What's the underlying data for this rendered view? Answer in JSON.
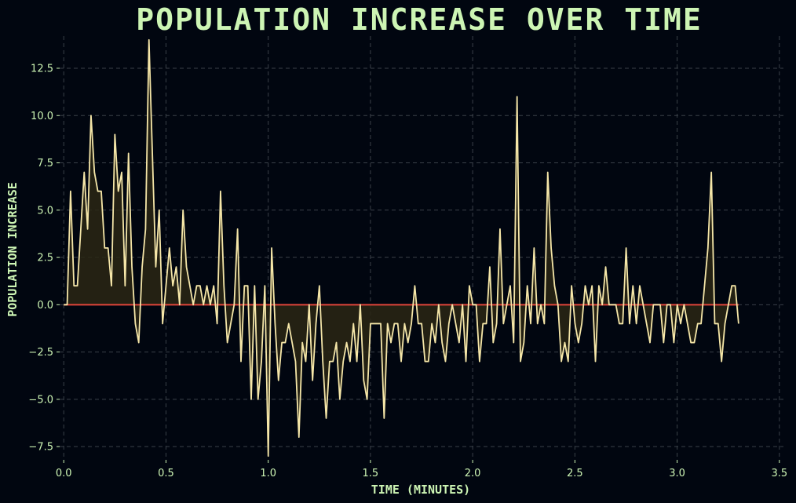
{
  "chart_data": {
    "type": "line",
    "title": "POPULATION INCREASE OVER TIME",
    "xlabel": "TIME (MINUTES)",
    "ylabel": "POPULATION INCREASE",
    "xlim": [
      -0.02,
      3.52
    ],
    "ylim": [
      -8.2,
      14.2
    ],
    "xticks": [
      0.0,
      0.5,
      1.0,
      1.5,
      2.0,
      2.5,
      3.0,
      3.5
    ],
    "xtick_labels": [
      "0.0",
      "0.5",
      "1.0",
      "1.5",
      "2.0",
      "2.5",
      "3.0",
      "3.5"
    ],
    "yticks": [
      -7.5,
      -5.0,
      -2.5,
      0.0,
      2.5,
      5.0,
      7.5,
      10.0,
      12.5
    ],
    "ytick_labels": [
      "−7.5",
      "−5.0",
      "−2.5",
      "0.0",
      "2.5",
      "5.0",
      "7.5",
      "10.0",
      "12.5"
    ],
    "grid": true,
    "baseline": 0,
    "colors": {
      "background": "#010610",
      "line": "#f5e6a8",
      "fill": "#2a2714",
      "baseline": "#e0453a",
      "text": "#cdf5b4",
      "grid": "#3a4048"
    },
    "series": [
      {
        "x_step": 0.01667,
        "values": [
          0,
          0,
          6,
          1,
          1,
          4,
          7,
          4,
          10,
          7,
          6,
          6,
          3,
          3,
          1,
          9,
          6,
          7,
          1,
          8,
          2,
          -1,
          -2,
          2,
          4,
          14,
          8,
          2,
          5,
          -1,
          1,
          3,
          1,
          2,
          0,
          5,
          2,
          1,
          0,
          1,
          1,
          0,
          1,
          0,
          1,
          -1,
          6,
          1,
          -2,
          -1,
          0,
          4,
          -3,
          1,
          1,
          -5,
          1,
          -5,
          -3,
          1,
          -8,
          3,
          -1,
          -4,
          -2,
          -2,
          -1,
          -2,
          -3,
          -7,
          -2,
          -3,
          0,
          -4,
          -1,
          1,
          -3,
          -6,
          -3,
          -3,
          -2,
          -5,
          -3,
          -2,
          -3,
          -1,
          -3,
          0,
          -4,
          -5,
          -1,
          -1,
          -1,
          -1,
          -6,
          -1,
          -2,
          -1,
          -1,
          -3,
          -1,
          -2,
          -1,
          1,
          -1,
          -1,
          -3,
          -3,
          -1,
          -2,
          0,
          -2,
          -3,
          -1,
          0,
          -1,
          -2,
          0,
          -3,
          1,
          0,
          0,
          -3,
          -1,
          -1,
          2,
          -2,
          -1,
          4,
          -1,
          0,
          1,
          -2,
          11,
          -3,
          -2,
          1,
          -1,
          3,
          -1,
          0,
          -1,
          7,
          3,
          1,
          0,
          -3,
          -2,
          -3,
          1,
          -1,
          -2,
          -1,
          1,
          0,
          1,
          -3,
          1,
          0,
          2,
          0,
          0,
          0,
          -1,
          -1,
          3,
          -1,
          1,
          -1,
          1,
          0,
          -1,
          -2,
          0,
          0,
          0,
          -2,
          0,
          0,
          -2,
          0,
          -1,
          0,
          -1,
          -2,
          -2,
          -1,
          -1,
          1,
          3,
          7,
          -1,
          -1,
          -3,
          -1,
          0,
          1,
          1,
          -1
        ]
      }
    ]
  }
}
